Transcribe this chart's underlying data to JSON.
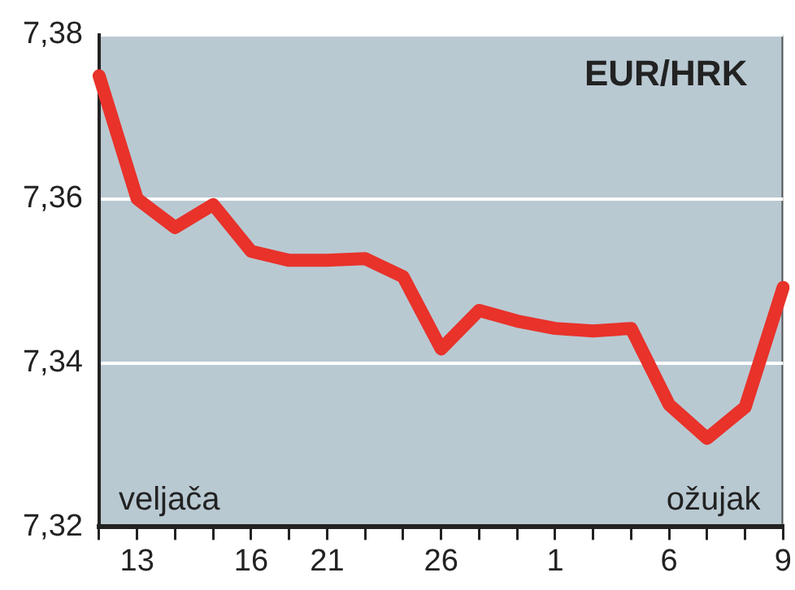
{
  "chart_data": {
    "type": "line",
    "title": "EUR/HRK",
    "categories": [
      null,
      "13",
      null,
      null,
      "16",
      null,
      "21",
      null,
      null,
      "26",
      null,
      null,
      "1",
      null,
      null,
      "6",
      null,
      null,
      "9"
    ],
    "series": [
      {
        "color": "#e8322a",
        "values": [
          7.375,
          7.36,
          7.3565,
          7.3593,
          7.3536,
          7.3525,
          7.3525,
          7.3527,
          7.3505,
          7.3417,
          7.3464,
          7.3451,
          7.3442,
          7.3439,
          7.3442,
          7.3349,
          7.3308,
          7.3346,
          7.3492
        ]
      }
    ],
    "ylim": [
      7.32,
      7.38
    ],
    "yticks": [
      {
        "value": 7.32,
        "label": "7,32"
      },
      {
        "value": 7.34,
        "label": "7,34"
      },
      {
        "value": 7.36,
        "label": "7,36"
      },
      {
        "value": 7.38,
        "label": "7,38"
      }
    ],
    "annotations": [
      "veljača",
      "ožujak"
    ],
    "grid": "y",
    "legend": false,
    "marker": "none",
    "line_style": "solid"
  }
}
